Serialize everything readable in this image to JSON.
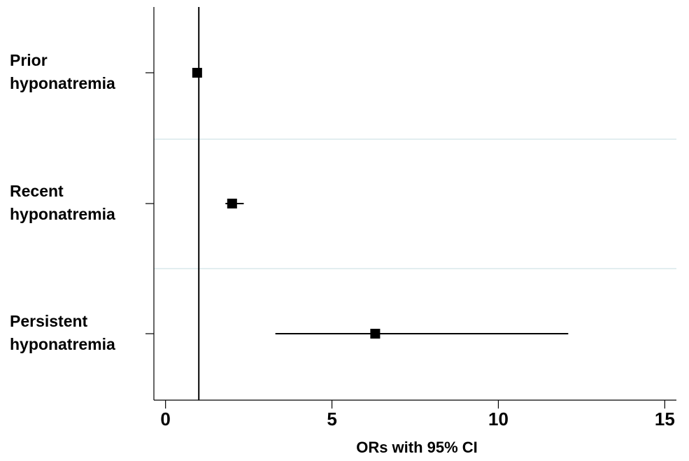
{
  "chart_data": {
    "type": "forest",
    "title": "",
    "xlabel": "ORs with 95% CI",
    "ylabel": "",
    "xlim": [
      -0.35,
      15.35
    ],
    "xticks": [
      0,
      5,
      10,
      15
    ],
    "xtick_labels": [
      "0",
      "5",
      "10",
      "15"
    ],
    "reference_line_x": 1,
    "grid": false,
    "category_lines": [
      "Prior hyponatremia",
      "Recent hyponatremia",
      "Persistent hyponatremia"
    ],
    "categories": [
      {
        "lines": [
          "Prior",
          "hyponatremia"
        ],
        "or": 0.95,
        "ci": [
          0.9,
          1.0
        ]
      },
      {
        "lines": [
          "Recent",
          "hyponatremia"
        ],
        "or": 2.0,
        "ci": [
          1.8,
          2.35
        ]
      },
      {
        "lines": [
          "Persistent",
          "hyponatremia"
        ],
        "or": 6.3,
        "ci": [
          3.3,
          12.1
        ]
      }
    ],
    "colors": {
      "marker": "#000000",
      "line": "#000000",
      "separator": "#d9e8ec"
    }
  }
}
